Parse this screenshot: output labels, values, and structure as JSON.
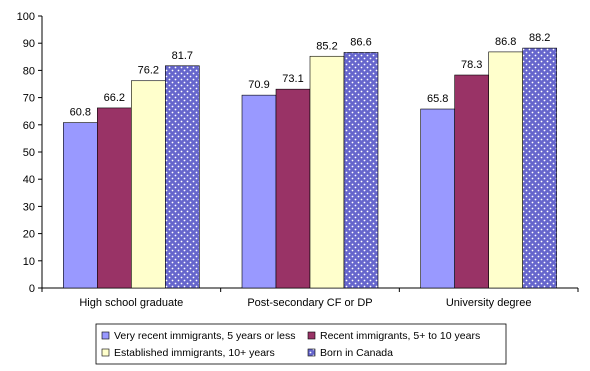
{
  "chart_data": {
    "type": "bar",
    "title": "",
    "xlabel": "",
    "ylabel": "",
    "ylim": [
      0,
      100
    ],
    "yticks": [
      0,
      10,
      20,
      30,
      40,
      50,
      60,
      70,
      80,
      90,
      100
    ],
    "grid": false,
    "legend_position": "bottom",
    "categories": [
      "High school graduate",
      "Post-secondary CF or DP",
      "University degree"
    ],
    "series": [
      {
        "name": "Very recent immigrants, 5 years or less",
        "color": "#9999ff",
        "pattern": "solid",
        "values": [
          60.8,
          70.9,
          65.8
        ]
      },
      {
        "name": "Recent immigrants, 5+ to 10 years",
        "color": "#993366",
        "pattern": "solid",
        "values": [
          66.2,
          73.1,
          78.3
        ]
      },
      {
        "name": "Established immigrants, 10+ years",
        "color": "#ffffcc",
        "pattern": "solid",
        "values": [
          76.2,
          85.2,
          86.8
        ]
      },
      {
        "name": "Born in Canada",
        "color": "#6666cc",
        "pattern": "dots",
        "values": [
          81.7,
          86.6,
          88.2
        ]
      }
    ]
  }
}
